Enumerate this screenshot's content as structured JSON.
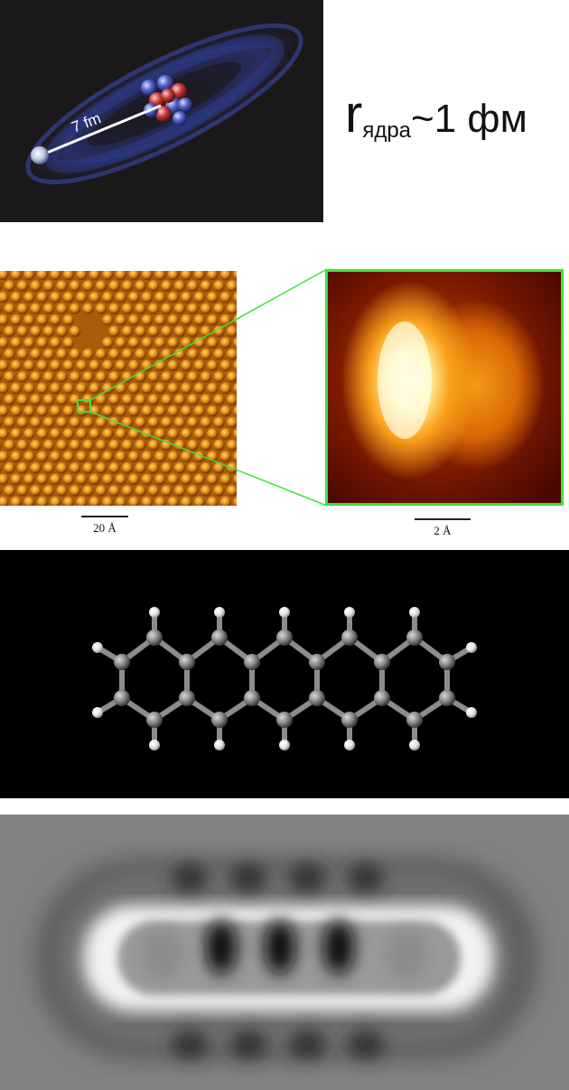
{
  "atom_panel": {
    "distance_label": "7 fm"
  },
  "formula": {
    "symbol": "r",
    "subscript": "ядра",
    "relation": "~1 фм"
  },
  "stm_panel": {
    "scale_label": "20 Å"
  },
  "zoom_panel": {
    "scale_label": "2 Å"
  },
  "colors": {
    "zoom_frame": "#3fe23b",
    "stm_base": "#b86a10",
    "atom_background": "#1b1819",
    "model_background": "#000000"
  }
}
